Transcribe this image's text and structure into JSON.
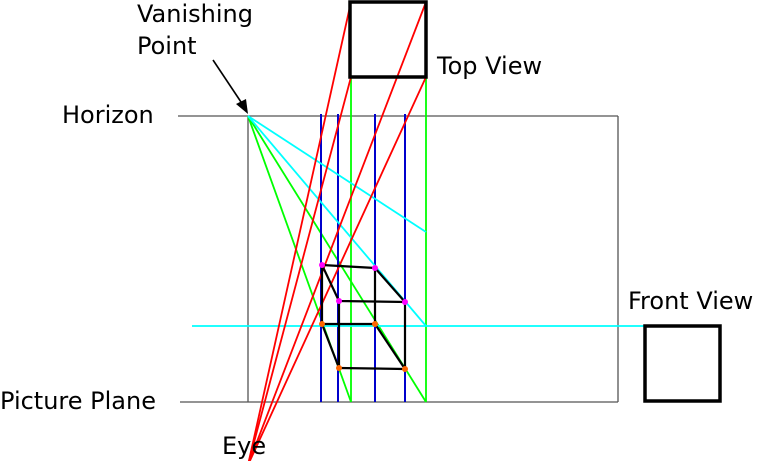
{
  "labels": {
    "vanishing_point_line1": "Vanishing",
    "vanishing_point_line2": "Point",
    "top_view": "Top View",
    "horizon": "Horizon",
    "front_view": "Front View",
    "picture_plane": "Picture Plane",
    "eye": "Eye"
  },
  "colors": {
    "frame": "#555555",
    "box": "#000000",
    "eye_rays": "#ff0000",
    "vanishing_rays": "#00ffff",
    "corner_rays": "#00ff00",
    "projectors": "#0000cc",
    "outline": "#000000",
    "near_points": "#ff6600",
    "far_points": "#ff00ff"
  }
}
